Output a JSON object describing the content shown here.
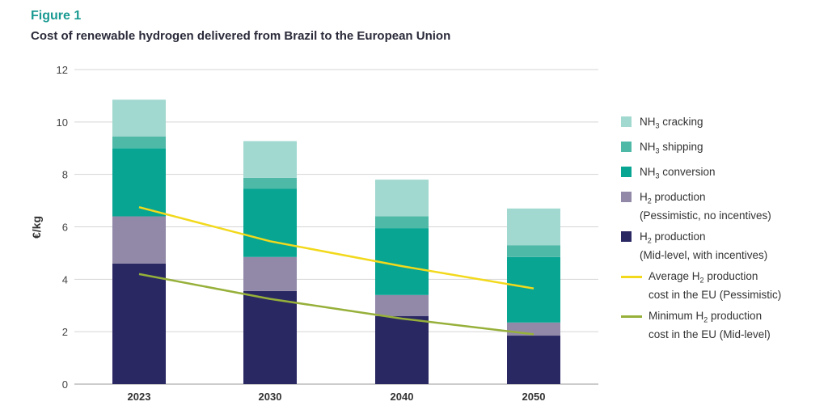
{
  "figure_label": "Figure 1",
  "figure_title": "Cost of renewable hydrogen delivered from Brazil to the European Union",
  "chart_data": {
    "type": "bar",
    "stacked": true,
    "title": "Cost of renewable hydrogen delivered from Brazil to the European Union",
    "xlabel": "",
    "ylabel": "€/kg",
    "ylim": [
      0,
      12
    ],
    "yticks": [
      "0",
      "2",
      "4",
      "6",
      "8",
      "10",
      "12"
    ],
    "grid": true,
    "legend_position": "right",
    "categories": [
      "2023",
      "2030",
      "2040",
      "2050"
    ],
    "series": [
      {
        "name": "H2 production (Mid-level, with incentives)",
        "color": "#2a2863",
        "values": [
          4.6,
          3.55,
          2.6,
          1.85
        ]
      },
      {
        "name": "H2 production (Pessimistic, no incentives)",
        "color": "#9289a8",
        "values": [
          1.8,
          1.3,
          0.8,
          0.5
        ]
      },
      {
        "name": "NH3 conversion",
        "color": "#08a593",
        "values": [
          2.6,
          2.6,
          2.55,
          2.5
        ]
      },
      {
        "name": "NH3 shipping",
        "color": "#4fb9a8",
        "values": [
          0.45,
          0.42,
          0.45,
          0.45
        ]
      },
      {
        "name": "NH3 cracking",
        "color": "#a1d8cf",
        "values": [
          1.4,
          1.4,
          1.4,
          1.4
        ]
      }
    ],
    "lines": [
      {
        "name": "Average H2 production cost in the EU (Pessimistic)",
        "color": "#f2d91c",
        "values": [
          6.75,
          5.45,
          4.5,
          3.65
        ]
      },
      {
        "name": "Minimum H2 production cost in the EU (Mid-level)",
        "color": "#96b03a",
        "values": [
          4.2,
          3.25,
          2.5,
          1.9
        ]
      }
    ]
  },
  "legend": [
    {
      "kind": "box",
      "color": "#a1d8cf",
      "pre": "NH",
      "sub": "3",
      "post": " cracking",
      "line2": ""
    },
    {
      "kind": "box",
      "color": "#4fb9a8",
      "pre": "NH",
      "sub": "3",
      "post": " shipping",
      "line2": ""
    },
    {
      "kind": "box",
      "color": "#08a593",
      "pre": "NH",
      "sub": "3",
      "post": " conversion",
      "line2": ""
    },
    {
      "kind": "box",
      "color": "#9289a8",
      "pre": "H",
      "sub": "2",
      "post": " production",
      "line2": "(Pessimistic, no incentives)"
    },
    {
      "kind": "box",
      "color": "#2a2863",
      "pre": "H",
      "sub": "2",
      "post": " production",
      "line2": "(Mid-level, with incentives)"
    },
    {
      "kind": "line",
      "color": "#f2d91c",
      "pre": "Average H",
      "sub": "2",
      "post": " production",
      "line2": "cost in the EU (Pessimistic)"
    },
    {
      "kind": "line",
      "color": "#96b03a",
      "pre": "Minimum H",
      "sub": "2",
      "post": " production",
      "line2": "cost in the EU (Mid-level)"
    }
  ]
}
